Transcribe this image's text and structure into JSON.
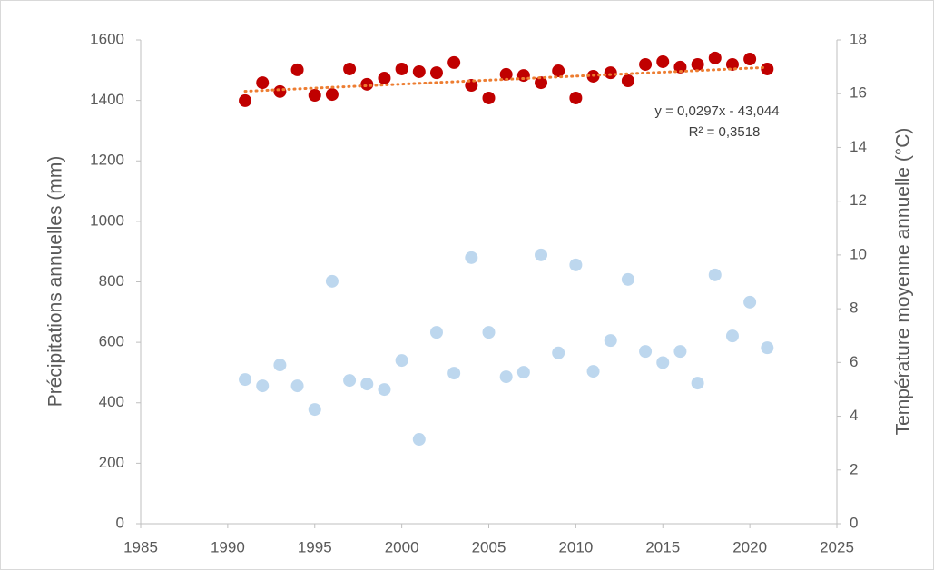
{
  "chart_data": {
    "type": "scatter",
    "y_label": "Précipitations annuelles (mm)",
    "y2_label": "Température moyenne annuelle (°C)",
    "x": [
      1991,
      1992,
      1993,
      1994,
      1995,
      1996,
      1997,
      1998,
      1999,
      2000,
      2001,
      2002,
      2003,
      2004,
      2005,
      2006,
      2007,
      2008,
      2009,
      2010,
      2011,
      2012,
      2013,
      2014,
      2015,
      2016,
      2017,
      2018,
      2019,
      2020,
      2021
    ],
    "series": [
      {
        "color": "#c00000",
        "axis": "y2",
        "values": [
          15.74,
          16.41,
          16.08,
          16.89,
          15.94,
          15.97,
          16.92,
          16.35,
          16.58,
          16.92,
          16.82,
          16.78,
          17.16,
          16.31,
          15.84,
          16.72,
          16.68,
          16.41,
          16.85,
          15.84,
          16.65,
          16.78,
          16.48,
          17.09,
          17.19,
          16.99,
          17.09,
          17.33,
          17.09,
          17.29,
          16.92
        ]
      },
      {
        "color": "#bdd7ee",
        "values": [
          477,
          456,
          525,
          456,
          378,
          802,
          474,
          462,
          444,
          540,
          279,
          633,
          498,
          880,
          633,
          486,
          501,
          889,
          565,
          856,
          504,
          606,
          808,
          570,
          533,
          570,
          465,
          823,
          621,
          733,
          582
        ]
      }
    ],
    "trendline": {
      "color": "#ed7d31",
      "axis": "y2",
      "x": [
        1991,
        2021
      ],
      "values": [
        16.09,
        16.98
      ]
    },
    "annotations": [
      "y = 0,0297x - 43,044",
      "R² = 0,3518"
    ],
    "xlim": [
      1985,
      2025
    ],
    "xticks": [
      1985,
      1990,
      1995,
      2000,
      2005,
      2010,
      2015,
      2020,
      2025
    ],
    "ylim": [
      0,
      1600
    ],
    "yticks": [
      0,
      200,
      400,
      600,
      800,
      1000,
      1200,
      1400,
      1600
    ],
    "y2lim": [
      0,
      18
    ],
    "y2ticks": [
      0,
      2,
      4,
      6,
      8,
      10,
      12,
      14,
      16,
      18
    ],
    "grid": false
  }
}
